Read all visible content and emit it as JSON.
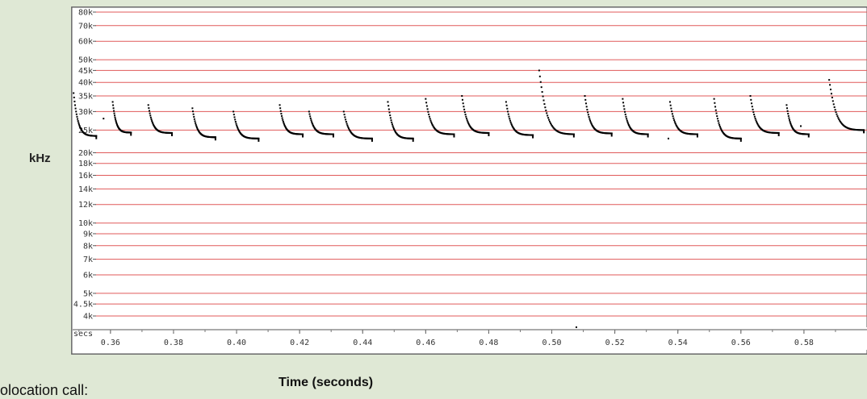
{
  "chart_data": {
    "type": "scatter",
    "xlabel": "Time (seconds)",
    "ylabel": "kHz",
    "x_axis_unit_label": "secs",
    "scale_y": "log",
    "xlim": [
      0.348,
      0.6
    ],
    "ylim": [
      3.2,
      80
    ],
    "x_ticks": [
      0.36,
      0.38,
      0.4,
      0.42,
      0.44,
      0.46,
      0.48,
      0.5,
      0.52,
      0.54,
      0.56,
      0.58
    ],
    "x_tick_labels": [
      "0.36",
      "0.38",
      "0.40",
      "0.42",
      "0.44",
      "0.46",
      "0.48",
      "0.50",
      "0.52",
      "0.54",
      "0.56",
      "0.58"
    ],
    "y_ticks": [
      4,
      4.5,
      5,
      6,
      7,
      8,
      9,
      10,
      12,
      14,
      16,
      18,
      20,
      25,
      30,
      35,
      40,
      45,
      50,
      60,
      70,
      80
    ],
    "y_tick_labels": [
      "4k",
      "4.5k",
      "5k",
      "6k",
      "7k",
      "8k",
      "9k",
      "10k",
      "12k",
      "14k",
      "16k",
      "18k",
      "20k",
      "25k",
      "30k",
      "35k",
      "40k",
      "45k",
      "50k",
      "60k",
      "70k",
      "80k"
    ],
    "grid": true,
    "grid_color": "#e05a5a",
    "point_color": "#000000",
    "calls": [
      {
        "start": 0.3483,
        "end": 0.3555,
        "f_start": 36,
        "f_end": 23.6
      },
      {
        "start": 0.3607,
        "end": 0.3665,
        "f_start": 33,
        "f_end": 24.4
      },
      {
        "start": 0.372,
        "end": 0.3795,
        "f_start": 32,
        "f_end": 24.3
      },
      {
        "start": 0.386,
        "end": 0.3933,
        "f_start": 31,
        "f_end": 23.3
      },
      {
        "start": 0.399,
        "end": 0.407,
        "f_start": 30,
        "f_end": 23.0
      },
      {
        "start": 0.4137,
        "end": 0.421,
        "f_start": 32,
        "f_end": 24.0
      },
      {
        "start": 0.423,
        "end": 0.4307,
        "f_start": 30,
        "f_end": 24.0
      },
      {
        "start": 0.434,
        "end": 0.443,
        "f_start": 30,
        "f_end": 23.0
      },
      {
        "start": 0.448,
        "end": 0.456,
        "f_start": 33,
        "f_end": 23.0
      },
      {
        "start": 0.46,
        "end": 0.469,
        "f_start": 34,
        "f_end": 24.0
      },
      {
        "start": 0.4715,
        "end": 0.48,
        "f_start": 35,
        "f_end": 24.3
      },
      {
        "start": 0.4855,
        "end": 0.494,
        "f_start": 33,
        "f_end": 23.8
      },
      {
        "start": 0.496,
        "end": 0.507,
        "f_start": 45,
        "f_end": 24.0
      },
      {
        "start": 0.5105,
        "end": 0.519,
        "f_start": 35,
        "f_end": 24.2
      },
      {
        "start": 0.5225,
        "end": 0.5305,
        "f_start": 34,
        "f_end": 24.0
      },
      {
        "start": 0.5375,
        "end": 0.5462,
        "f_start": 33,
        "f_end": 24.0
      },
      {
        "start": 0.5515,
        "end": 0.56,
        "f_start": 34,
        "f_end": 23.0
      },
      {
        "start": 0.563,
        "end": 0.572,
        "f_start": 35,
        "f_end": 24.3
      },
      {
        "start": 0.5745,
        "end": 0.5815,
        "f_start": 32,
        "f_end": 24.0
      },
      {
        "start": 0.588,
        "end": 0.599,
        "f_start": 41,
        "f_end": 25.0
      }
    ],
    "stray_points": [
      {
        "x": 0.3578,
        "y": 28.0
      },
      {
        "x": 0.5078,
        "y": 3.4
      },
      {
        "x": 0.537,
        "y": 23.0
      },
      {
        "x": 0.579,
        "y": 26.0
      }
    ]
  },
  "labels": {
    "y_axis": "kHz",
    "x_axis": "Time (seconds)",
    "caption": "olocation call:"
  }
}
